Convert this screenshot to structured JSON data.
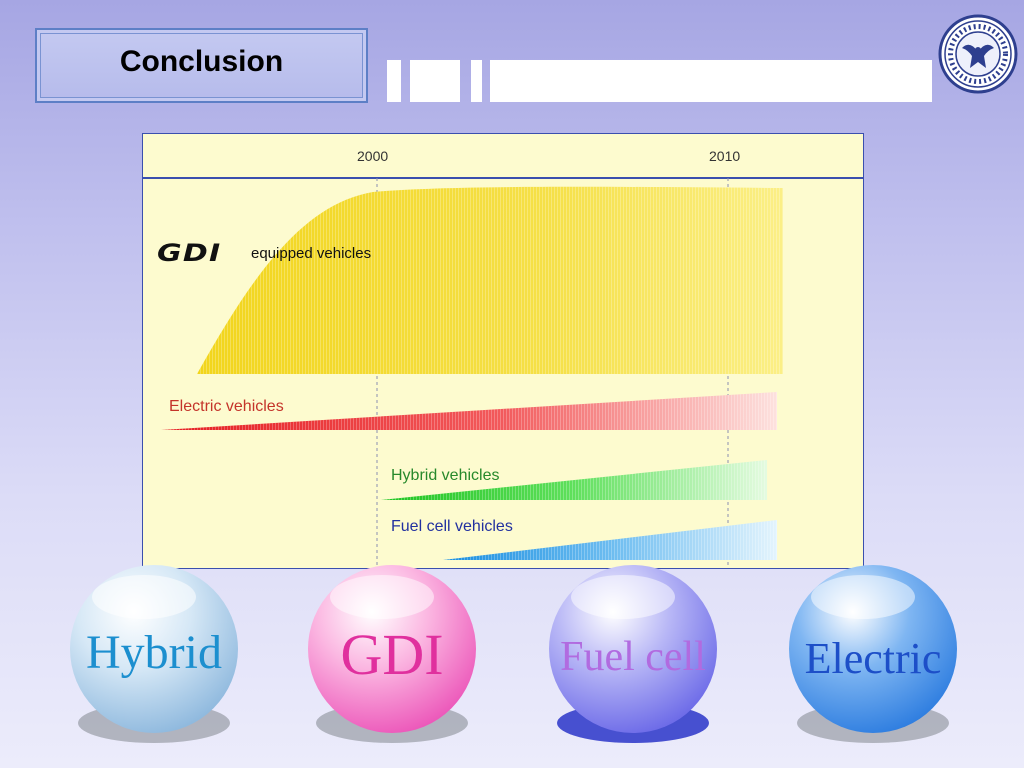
{
  "slide": {
    "title": "Conclusion",
    "logo_icon": "university-seal-eagle-icon"
  },
  "diagram": {
    "axis_ticks": [
      "2000",
      "2010"
    ],
    "gdi_logo_text": "GDI",
    "gdi_label": "equipped vehicles",
    "electric_label": "Electric vehicles",
    "hybrid_label": "Hybrid vehicles",
    "fuelcell_label": "Fuel cell vehicles",
    "colors": {
      "background": "#fdfbcf",
      "gdi": "#f4dd2e",
      "electric": "#ee4a44",
      "hybrid": "#37d83b",
      "fuelcell": "#2c98e6"
    }
  },
  "spheres": [
    {
      "label": "Hybrid",
      "color": "#a9cdea",
      "text_color": "#1c8fcf"
    },
    {
      "label": "GDI",
      "color": "#f489cd",
      "text_color": "#e0309e"
    },
    {
      "label": "Fuel cell",
      "color": "#8f8ef0",
      "text_color": "#b16be0"
    },
    {
      "label": "Electric",
      "color": "#4a97ea",
      "text_color": "#1d4fc8"
    }
  ]
}
